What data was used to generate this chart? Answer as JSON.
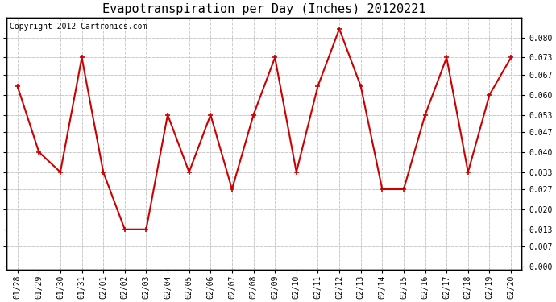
{
  "title": "Evapotranspiration per Day (Inches) 20120221",
  "copyright_text": "Copyright 2012 Cartronics.com",
  "x_labels": [
    "01/28",
    "01/29",
    "01/30",
    "01/31",
    "02/01",
    "02/02",
    "02/03",
    "02/04",
    "02/05",
    "02/06",
    "02/07",
    "02/08",
    "02/09",
    "02/10",
    "02/11",
    "02/12",
    "02/13",
    "02/14",
    "02/15",
    "02/16",
    "02/17",
    "02/18",
    "02/19",
    "02/20"
  ],
  "y_values": [
    0.063,
    0.04,
    0.033,
    0.073,
    0.033,
    0.013,
    0.013,
    0.053,
    0.033,
    0.053,
    0.027,
    0.053,
    0.073,
    0.033,
    0.063,
    0.083,
    0.063,
    0.027,
    0.027,
    0.053,
    0.073,
    0.033,
    0.06,
    0.073
  ],
  "line_color": "#cc0000",
  "marker": "+",
  "marker_size": 5,
  "marker_linewidth": 1.2,
  "line_width": 1.5,
  "background_color": "#ffffff",
  "grid_color": "#cccccc",
  "yticks": [
    0.0,
    0.007,
    0.013,
    0.02,
    0.027,
    0.033,
    0.04,
    0.047,
    0.053,
    0.06,
    0.067,
    0.073,
    0.08
  ],
  "ymin": -0.001,
  "ymax": 0.087,
  "title_fontsize": 11,
  "copyright_fontsize": 7,
  "tick_fontsize": 7
}
